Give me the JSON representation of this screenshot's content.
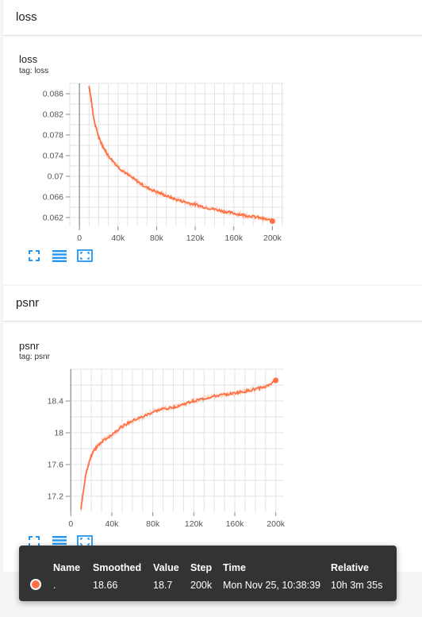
{
  "sections": [
    {
      "header": "loss",
      "card_title": "loss",
      "card_tag": "tag: loss",
      "chart_data": {
        "type": "line",
        "title": "loss",
        "x_ticks": [
          "0",
          "40k",
          "80k",
          "120k",
          "160k",
          "200k"
        ],
        "y_ticks": [
          "0.086",
          "0.082",
          "0.078",
          "0.074",
          "0.07",
          "0.066",
          "0.062"
        ],
        "xlim": [
          -10000,
          212000
        ],
        "ylim": [
          0.0603,
          0.088
        ],
        "grid": true,
        "color": "#ff7043",
        "series": [
          {
            "x": [
              10000,
              12000,
              15000,
              20000,
              25000,
              30000,
              40000,
              50000,
              60000,
              70000,
              80000,
              90000,
              100000,
              110000,
              120000,
              130000,
              140000,
              150000,
              160000,
              170000,
              180000,
              190000,
              200000
            ],
            "values": [
              0.0875,
              0.085,
              0.081,
              0.0775,
              0.0755,
              0.074,
              0.0718,
              0.0703,
              0.069,
              0.0678,
              0.067,
              0.0662,
              0.0655,
              0.065,
              0.0645,
              0.064,
              0.0636,
              0.0632,
              0.0628,
              0.0625,
              0.0622,
              0.0618,
              0.0613
            ]
          }
        ]
      }
    },
    {
      "header": "psnr",
      "card_title": "psnr",
      "card_tag": "tag: psnr",
      "chart_data": {
        "type": "line",
        "title": "psnr",
        "x_ticks": [
          "0",
          "40k",
          "80k",
          "120k",
          "160k",
          "200k"
        ],
        "y_ticks": [
          "18.4",
          "18",
          "17.6",
          "17.2"
        ],
        "xlim": [
          -1000,
          208000
        ],
        "ylim": [
          17.0,
          18.8
        ],
        "grid": true,
        "color": "#ff7043",
        "series": [
          {
            "x": [
              10000,
              12000,
              15000,
              20000,
              25000,
              30000,
              40000,
              50000,
              60000,
              70000,
              80000,
              90000,
              100000,
              110000,
              120000,
              130000,
              140000,
              150000,
              160000,
              170000,
              180000,
              190000,
              200000
            ],
            "values": [
              17.05,
              17.25,
              17.5,
              17.72,
              17.82,
              17.88,
              17.98,
              18.08,
              18.15,
              18.2,
              18.26,
              18.3,
              18.32,
              18.36,
              18.4,
              18.43,
              18.46,
              18.48,
              18.5,
              18.52,
              18.55,
              18.58,
              18.66
            ]
          }
        ]
      }
    }
  ],
  "toolbar_icons": [
    "fullscreen-icon",
    "data-table-icon",
    "fit-domain-icon"
  ],
  "tooltip": {
    "headers": {
      "name": "Name",
      "smoothed": "Smoothed",
      "value": "Value",
      "step": "Step",
      "time": "Time",
      "relative": "Relative"
    },
    "row": {
      "name": ".",
      "smoothed": "18.66",
      "value": "18.7",
      "step": "200k",
      "time": "Mon Nov 25, 10:38:39",
      "relative": "10h 3m 35s"
    },
    "color": "#ff7043"
  }
}
